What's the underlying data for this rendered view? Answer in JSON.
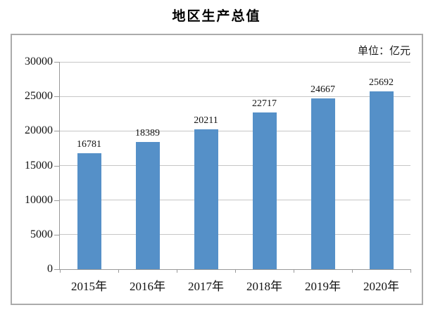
{
  "chart_data": {
    "type": "bar",
    "title": "地区生产总值",
    "unit_label": "单位：亿元",
    "categories": [
      "2015年",
      "2016年",
      "2017年",
      "2018年",
      "2019年",
      "2020年"
    ],
    "values": [
      16781,
      18389,
      20211,
      22717,
      24667,
      25692
    ],
    "xlabel": "",
    "ylabel": "",
    "ylim": [
      0,
      30000
    ],
    "y_ticks": [
      0,
      5000,
      10000,
      15000,
      20000,
      25000,
      30000
    ],
    "grid": true,
    "legend_position": "none",
    "data_labels_shown": true,
    "colors": {
      "bar": "#5590C8",
      "gridline": "#C6C6C6",
      "axis": "#999999",
      "frame_border": "#ABABAB",
      "text": "#111111"
    }
  }
}
